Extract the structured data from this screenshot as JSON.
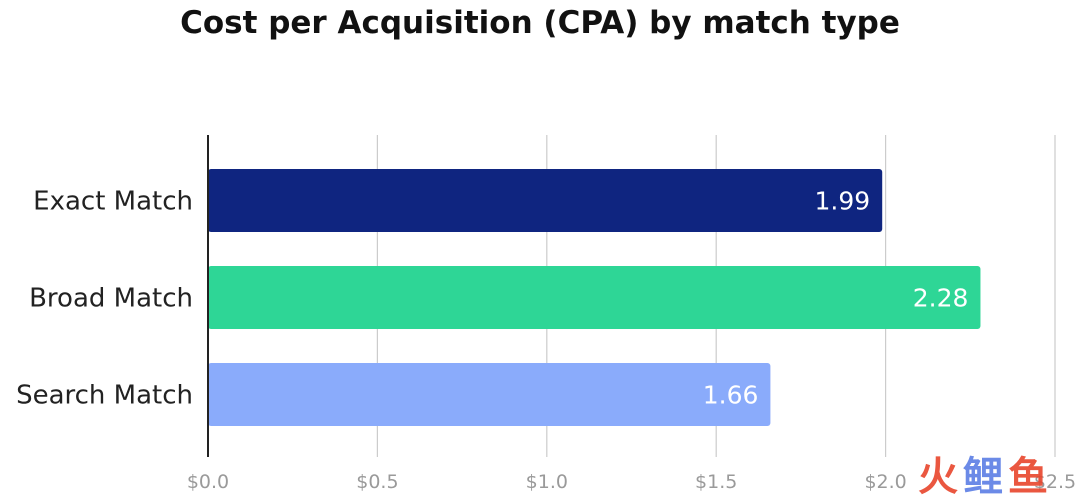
{
  "chart_data": {
    "type": "bar",
    "orientation": "horizontal",
    "title": "Cost per Acquisition (CPA) by match type",
    "categories": [
      "Exact  Match",
      "Broad  Match",
      "Search Match"
    ],
    "values": [
      1.99,
      2.28,
      1.66
    ],
    "data_labels": [
      "1.99",
      "2.28",
      "1.66"
    ],
    "bar_colors": [
      "#0f2580",
      "#2ed696",
      "#8aabfb"
    ],
    "xlim": [
      0,
      2.5
    ],
    "x_ticks": [
      {
        "value": 0.0,
        "label": "$0.0"
      },
      {
        "value": 0.5,
        "label": "$0.5"
      },
      {
        "value": 1.0,
        "label": "$1.0"
      },
      {
        "value": 1.5,
        "label": "$1.5"
      },
      {
        "value": 2.0,
        "label": "$2.0"
      },
      {
        "value": 2.5,
        "label": "$2.5"
      }
    ],
    "grid": true,
    "legend": "none"
  },
  "watermark": {
    "glyphs": [
      "火",
      "鲤",
      "鱼"
    ],
    "colors": [
      "#e8452c",
      "#5b7ee5",
      "#e8452c"
    ]
  }
}
